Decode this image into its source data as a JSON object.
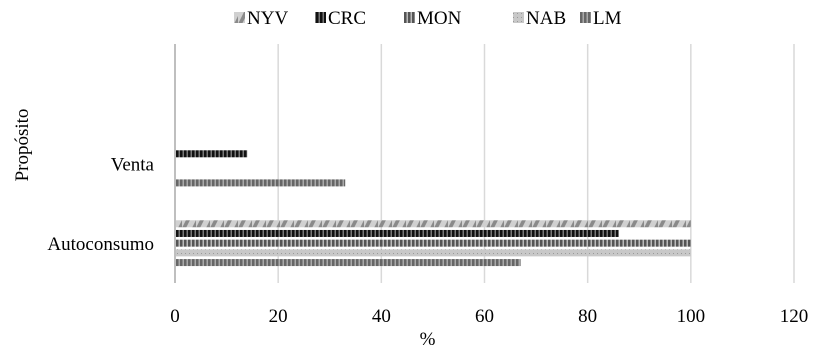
{
  "chart_data": {
    "type": "bar",
    "orientation": "horizontal",
    "categories": [
      "Autoconsumo",
      "Venta",
      ""
    ],
    "series": [
      {
        "name": "NYV",
        "values": [
          100,
          0,
          0
        ],
        "color": "#9a9a9a",
        "pattern": "diagonal-stripes"
      },
      {
        "name": "CRC",
        "values": [
          86,
          14,
          0
        ],
        "color": "#1e1e1e",
        "pattern": "vertical-stripes"
      },
      {
        "name": "MON",
        "values": [
          100,
          0,
          0
        ],
        "color": "#6e6e6e",
        "pattern": "vertical-stripes"
      },
      {
        "name": "NAB",
        "values": [
          100,
          0,
          0
        ],
        "color": "#c8c8c8",
        "pattern": "dotted"
      },
      {
        "name": "LM",
        "values": [
          67,
          33,
          0
        ],
        "color": "#7a7a7a",
        "pattern": "vertical-stripes"
      }
    ],
    "xlabel": "%",
    "ylabel": "Propósito",
    "xlim": [
      0,
      120
    ],
    "xticks": [
      0,
      20,
      40,
      60,
      80,
      100,
      120
    ],
    "grid": "vertical",
    "legend": "top-center"
  }
}
